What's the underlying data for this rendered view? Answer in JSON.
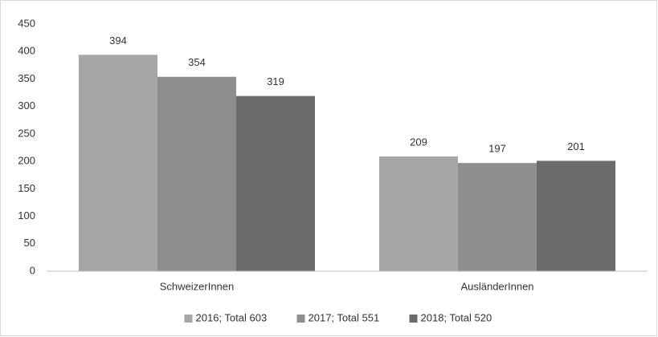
{
  "chart_data": {
    "type": "bar",
    "categories": [
      "SchweizerInnen",
      "AusländerInnen"
    ],
    "series": [
      {
        "name": "2016; Total 603",
        "color": "#a6a6a6",
        "values": [
          394,
          209
        ]
      },
      {
        "name": "2017; Total 551",
        "color": "#8f8f8f",
        "values": [
          354,
          197
        ]
      },
      {
        "name": "2018; Total 520",
        "color": "#6b6b6b",
        "values": [
          319,
          201
        ]
      }
    ],
    "ylim": [
      0,
      450
    ],
    "yticks": [
      0,
      50,
      100,
      150,
      200,
      250,
      300,
      350,
      400,
      450
    ],
    "grid": false,
    "legend": "bottom"
  }
}
